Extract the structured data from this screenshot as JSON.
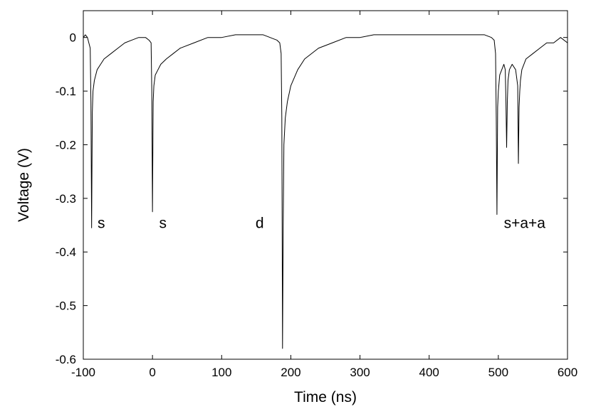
{
  "chart_data": {
    "type": "line",
    "title": "",
    "xlabel": "Time (ns)",
    "ylabel": "Voltage (V)",
    "xlim": [
      -100,
      600
    ],
    "ylim": [
      -0.6,
      0.05
    ],
    "xticks": [
      -100,
      0,
      100,
      200,
      300,
      400,
      500,
      600
    ],
    "yticks": [
      0,
      -0.1,
      -0.2,
      -0.3,
      -0.4,
      -0.5,
      -0.6
    ],
    "xtick_labels": [
      "-100",
      "0",
      "100",
      "200",
      "300",
      "400",
      "500",
      "600"
    ],
    "ytick_labels": [
      "0",
      "-0.1",
      "-0.2",
      "-0.3",
      "-0.4",
      "-0.5",
      "-0.6"
    ],
    "grid": false,
    "line_color": "#000000",
    "series": [
      {
        "x": [
          -100,
          -97,
          -94,
          -92,
          -90,
          -89,
          -88,
          -87,
          -86,
          -84,
          -80,
          -75,
          -70,
          -60,
          -50,
          -40,
          -30,
          -20,
          -10,
          -5,
          -2,
          -1,
          0,
          1,
          2,
          4,
          8,
          12,
          20,
          30,
          40,
          60,
          80,
          100,
          120,
          140,
          160,
          170,
          180,
          184,
          186,
          187,
          188,
          189,
          190,
          192,
          195,
          200,
          210,
          220,
          240,
          260,
          280,
          300,
          320,
          340,
          360,
          380,
          400,
          420,
          440,
          460,
          480,
          490,
          494,
          496,
          497,
          498,
          499,
          500,
          502,
          505,
          508,
          510,
          511,
          512,
          513,
          514,
          516,
          520,
          525,
          528,
          529,
          530,
          531,
          532,
          534,
          540,
          550,
          560,
          570,
          580,
          590,
          600
        ],
        "y": [
          0.0,
          0.005,
          0.0,
          -0.01,
          -0.02,
          -0.12,
          -0.355,
          -0.14,
          -0.1,
          -0.08,
          -0.06,
          -0.05,
          -0.04,
          -0.03,
          -0.02,
          -0.01,
          -0.005,
          0.0,
          0.0,
          -0.005,
          -0.01,
          -0.1,
          -0.325,
          -0.12,
          -0.09,
          -0.07,
          -0.06,
          -0.05,
          -0.04,
          -0.03,
          -0.02,
          -0.01,
          0.0,
          0.0,
          0.005,
          0.005,
          0.005,
          0.0,
          -0.005,
          -0.01,
          -0.03,
          -0.15,
          -0.58,
          -0.35,
          -0.2,
          -0.15,
          -0.12,
          -0.09,
          -0.06,
          -0.04,
          -0.02,
          -0.01,
          0.0,
          0.0,
          0.005,
          0.005,
          0.005,
          0.005,
          0.005,
          0.005,
          0.005,
          0.005,
          0.005,
          0.0,
          -0.005,
          -0.03,
          -0.15,
          -0.33,
          -0.13,
          -0.1,
          -0.07,
          -0.06,
          -0.05,
          -0.06,
          -0.12,
          -0.205,
          -0.12,
          -0.08,
          -0.06,
          -0.05,
          -0.06,
          -0.09,
          -0.235,
          -0.13,
          -0.1,
          -0.08,
          -0.06,
          -0.04,
          -0.03,
          -0.02,
          -0.01,
          -0.01,
          0.0,
          -0.01
        ]
      }
    ],
    "annotations": [
      {
        "text": "s",
        "x": -74,
        "y": -0.355
      },
      {
        "text": "s",
        "x": 15,
        "y": -0.355
      },
      {
        "text": "d",
        "x": 155,
        "y": -0.355
      },
      {
        "text": "s+a+a",
        "x": 538,
        "y": -0.355
      }
    ]
  }
}
